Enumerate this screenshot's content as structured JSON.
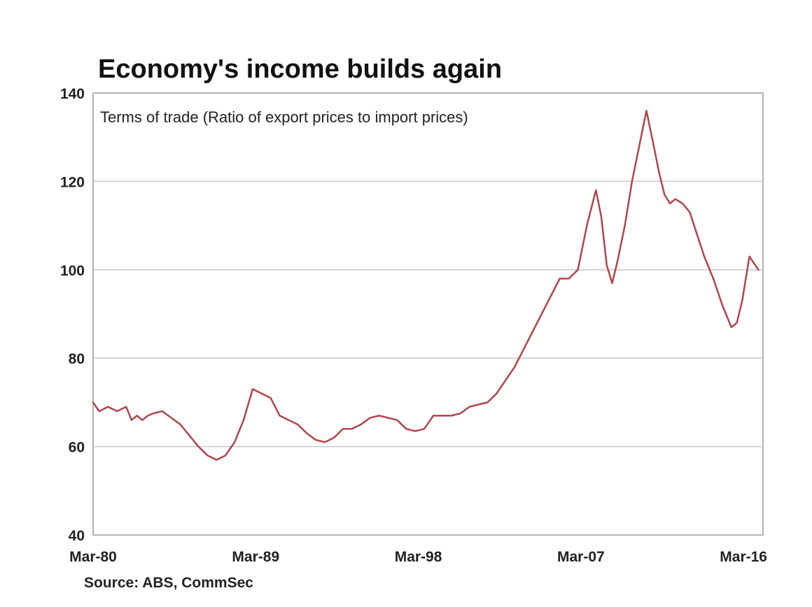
{
  "chart_title": "Economy's income builds again",
  "source": "Source: ABS, CommSec",
  "colors": {
    "line": "#b0454a",
    "grid": "#c9c9c9",
    "frame": "#9a9a9a",
    "text": "#222222"
  },
  "chart_data": {
    "type": "line",
    "title": "Economy's income builds again",
    "annotation": "Terms of trade (Ratio of export prices to import prices)",
    "xlabel": "",
    "ylabel": "",
    "ylim": [
      40,
      140
    ],
    "xlim": [
      1980.17,
      2017.25
    ],
    "yticks": [
      40,
      60,
      80,
      100,
      120,
      140
    ],
    "xticks": [
      {
        "label": "Mar-80",
        "value": 1980.17
      },
      {
        "label": "Mar-89",
        "value": 1989.17
      },
      {
        "label": "Mar-98",
        "value": 1998.17
      },
      {
        "label": "Mar-07",
        "value": 2007.17
      },
      {
        "label": "Mar-16",
        "value": 2016.17
      }
    ],
    "grid": true,
    "series": [
      {
        "x": [
          1980.17,
          1980.5,
          1981.0,
          1981.5,
          1982.0,
          1982.3,
          1982.6,
          1982.9,
          1983.2,
          1983.5,
          1984.0,
          1985.0,
          1986.0,
          1986.5,
          1987.0,
          1987.5,
          1988.0,
          1988.5,
          1989.0,
          1989.5,
          1990.0,
          1990.5,
          1991.0,
          1991.5,
          1992.0,
          1992.5,
          1993.0,
          1993.5,
          1994.0,
          1994.5,
          1995.0,
          1995.5,
          1996.0,
          1997.0,
          1997.5,
          1998.0,
          1998.5,
          1999.0,
          1999.5,
          2000.0,
          2000.5,
          2001.0,
          2002.0,
          2002.5,
          2003.0,
          2003.5,
          2004.0,
          2004.5,
          2005.0,
          2005.5,
          2006.0,
          2006.5,
          2007.0,
          2007.5,
          2008.0,
          2008.3,
          2008.6,
          2008.9,
          2009.2,
          2009.6,
          2010.0,
          2010.4,
          2010.8,
          2011.2,
          2011.5,
          2011.8,
          2012.1,
          2012.4,
          2012.8,
          2013.2,
          2013.6,
          2014.0,
          2014.5,
          2015.0,
          2015.5,
          2015.8,
          2016.1,
          2016.5,
          2017.0
        ],
        "y": [
          70,
          68,
          69,
          68,
          69,
          66,
          67,
          66,
          67,
          67.5,
          68,
          65,
          60,
          58,
          57,
          58,
          61,
          66,
          73,
          72,
          71,
          67,
          66,
          65,
          63,
          61.5,
          61,
          62,
          64,
          64,
          65,
          66.5,
          67,
          66,
          64,
          63.5,
          64,
          67,
          67,
          67,
          67.5,
          69,
          70,
          72,
          75,
          78,
          82,
          86,
          90,
          94,
          98,
          98,
          100,
          110,
          118,
          112,
          101,
          97,
          102,
          110,
          120,
          128,
          136,
          128,
          122,
          117,
          115,
          116,
          115,
          113,
          108,
          103,
          98,
          92,
          87,
          88,
          93,
          103,
          100
        ]
      }
    ]
  }
}
